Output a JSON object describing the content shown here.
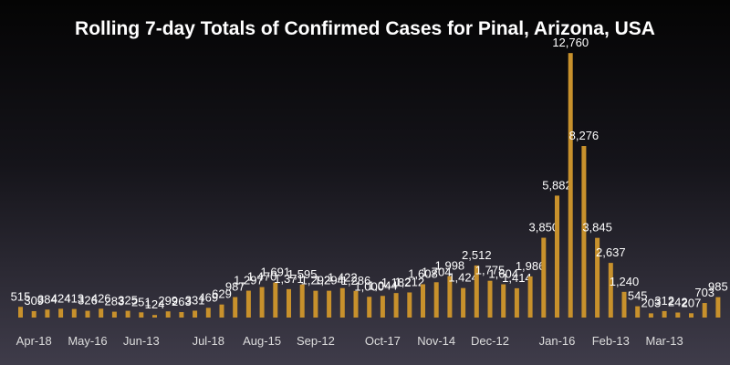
{
  "chart_data": {
    "type": "bar",
    "title": "Rolling 7-day Totals of Confirmed Cases for Pinal, Arizona, USA",
    "bar_color": "#c8912c",
    "label_color": "#ffffff",
    "text_color": "#dddddd",
    "ylim": [
      0,
      14000
    ],
    "x_tick_labels": [
      {
        "index": 1,
        "label": "Apr-18"
      },
      {
        "index": 5,
        "label": "May-16"
      },
      {
        "index": 9,
        "label": "Jun-13"
      },
      {
        "index": 14,
        "label": "Jul-18"
      },
      {
        "index": 18,
        "label": "Aug-15"
      },
      {
        "index": 22,
        "label": "Sep-12"
      },
      {
        "index": 27,
        "label": "Oct-17"
      },
      {
        "index": 31,
        "label": "Nov-14"
      },
      {
        "index": 35,
        "label": "Dec-12"
      },
      {
        "index": 40,
        "label": "Jan-16"
      },
      {
        "index": 44,
        "label": "Feb-13"
      },
      {
        "index": 48,
        "label": "Mar-13"
      }
    ],
    "values": [
      515,
      309,
      384,
      424,
      413,
      326,
      426,
      283,
      325,
      251,
      124,
      299,
      263,
      331,
      469,
      629,
      987,
      1297,
      1470,
      1691,
      1371,
      1595,
      1292,
      1294,
      1422,
      1286,
      1000,
      1044,
      1182,
      1212,
      1608,
      1704,
      1998,
      1424,
      2512,
      1775,
      1604,
      1414,
      1986,
      3850,
      5882,
      12760,
      8276,
      3845,
      2637,
      1240,
      545,
      203,
      312,
      242,
      207,
      703,
      985
    ],
    "labels": [
      "515",
      "309",
      "384",
      "424",
      "413",
      "326",
      "426",
      "283",
      "325",
      "251",
      "124",
      "299",
      "263",
      "331",
      "469",
      "629",
      "987",
      "1,297",
      "1,470",
      "1,691",
      "1,371",
      "1,595",
      "1,292",
      "1,294",
      "1,422",
      "1,286",
      "1,000",
      "1,044",
      "1,182",
      "1,212",
      "1,608",
      "1,704",
      "1,998",
      "1,424",
      "2,512",
      "1,775",
      "1,604",
      "1,414",
      "1,986",
      "3,850",
      "5,882",
      "12,760",
      "8,276",
      "3,845",
      "2,637",
      "1,240",
      "545",
      "203",
      "312",
      "242",
      "207",
      "703",
      "985"
    ]
  }
}
